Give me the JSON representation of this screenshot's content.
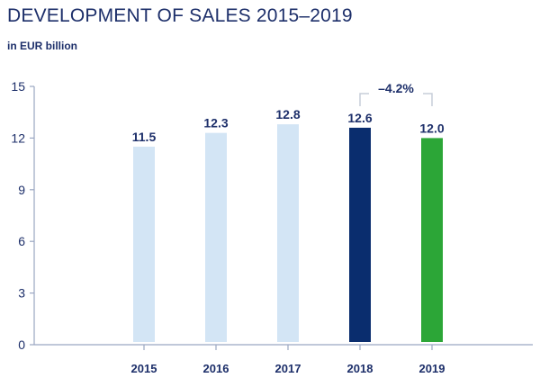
{
  "title": "DEVELOPMENT OF SALES 2015–2019",
  "subtitle": "in EUR billion",
  "colors": {
    "text": "#1d2f6a",
    "axis": "#9aa6c2",
    "bar_light": "#d3e5f5",
    "bar_dark": "#0a2d6e",
    "bar_green": "#2ca637",
    "bracket": "#c7cdd9"
  },
  "chart_data": {
    "type": "bar",
    "categories": [
      "2015",
      "2016",
      "2017",
      "2018",
      "2019"
    ],
    "values": [
      11.5,
      12.3,
      12.8,
      12.6,
      12.0
    ],
    "value_labels": [
      "11.5",
      "12.3",
      "12.8",
      "12.6",
      "12.0"
    ],
    "bar_colors": [
      "#d3e5f5",
      "#d3e5f5",
      "#d3e5f5",
      "#0a2d6e",
      "#2ca637"
    ],
    "ylim": [
      0,
      15
    ],
    "yticks": [
      0,
      3,
      6,
      9,
      12,
      15
    ],
    "xlabel": "",
    "ylabel": "",
    "grid": false,
    "annotation": {
      "text": "–4.2%",
      "from": "2018",
      "to": "2019"
    }
  }
}
